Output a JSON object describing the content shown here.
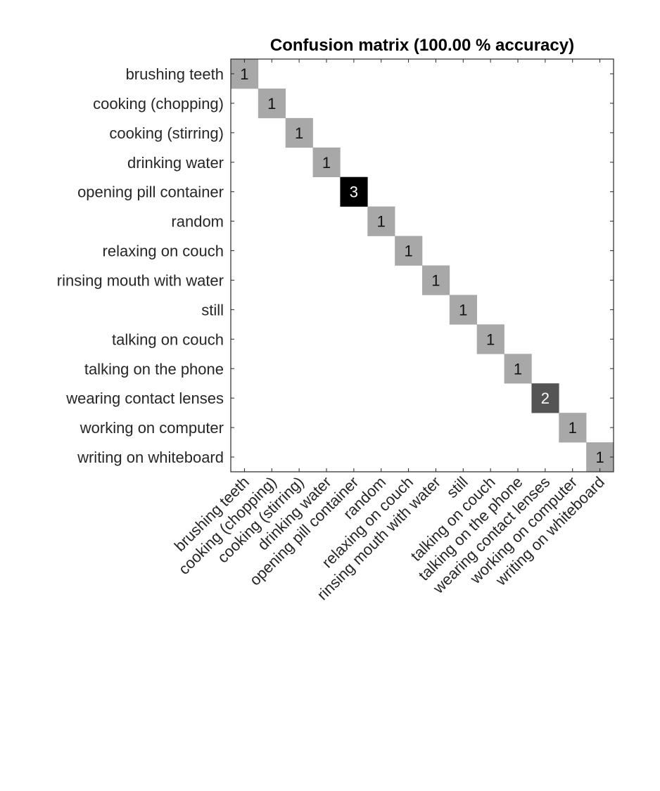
{
  "chart_data": {
    "type": "heatmap",
    "title": "Confusion matrix (100.00 % accuracy)",
    "xlabel": "",
    "ylabel": "",
    "grid": false,
    "colormap": "grayscale (white = 0, black = max)",
    "row_labels": [
      "brushing teeth",
      "cooking (chopping)",
      "cooking (stirring)",
      "drinking water",
      "opening pill container",
      "random",
      "relaxing on couch",
      "rinsing mouth with water",
      "still",
      "talking on couch",
      "talking on the phone",
      "wearing contact lenses",
      "working on computer",
      "writing on whiteboard"
    ],
    "column_labels": [
      "brushing teeth",
      "cooking (chopping)",
      "cooking (stirring)",
      "drinking water",
      "opening pill container",
      "random",
      "relaxing on couch",
      "rinsing mouth with water",
      "still",
      "talking on couch",
      "talking on the phone",
      "wearing contact lenses",
      "working on computer",
      "writing on whiteboard"
    ],
    "values": [
      [
        1,
        0,
        0,
        0,
        0,
        0,
        0,
        0,
        0,
        0,
        0,
        0,
        0,
        0
      ],
      [
        0,
        1,
        0,
        0,
        0,
        0,
        0,
        0,
        0,
        0,
        0,
        0,
        0,
        0
      ],
      [
        0,
        0,
        1,
        0,
        0,
        0,
        0,
        0,
        0,
        0,
        0,
        0,
        0,
        0
      ],
      [
        0,
        0,
        0,
        1,
        0,
        0,
        0,
        0,
        0,
        0,
        0,
        0,
        0,
        0
      ],
      [
        0,
        0,
        0,
        0,
        3,
        0,
        0,
        0,
        0,
        0,
        0,
        0,
        0,
        0
      ],
      [
        0,
        0,
        0,
        0,
        0,
        1,
        0,
        0,
        0,
        0,
        0,
        0,
        0,
        0
      ],
      [
        0,
        0,
        0,
        0,
        0,
        0,
        1,
        0,
        0,
        0,
        0,
        0,
        0,
        0
      ],
      [
        0,
        0,
        0,
        0,
        0,
        0,
        0,
        1,
        0,
        0,
        0,
        0,
        0,
        0
      ],
      [
        0,
        0,
        0,
        0,
        0,
        0,
        0,
        0,
        1,
        0,
        0,
        0,
        0,
        0
      ],
      [
        0,
        0,
        0,
        0,
        0,
        0,
        0,
        0,
        0,
        1,
        0,
        0,
        0,
        0
      ],
      [
        0,
        0,
        0,
        0,
        0,
        0,
        0,
        0,
        0,
        0,
        1,
        0,
        0,
        0
      ],
      [
        0,
        0,
        0,
        0,
        0,
        0,
        0,
        0,
        0,
        0,
        0,
        2,
        0,
        0
      ],
      [
        0,
        0,
        0,
        0,
        0,
        0,
        0,
        0,
        0,
        0,
        0,
        0,
        1,
        0
      ],
      [
        0,
        0,
        0,
        0,
        0,
        0,
        0,
        0,
        0,
        0,
        0,
        0,
        0,
        1
      ]
    ],
    "value_range": [
      0,
      3
    ]
  }
}
